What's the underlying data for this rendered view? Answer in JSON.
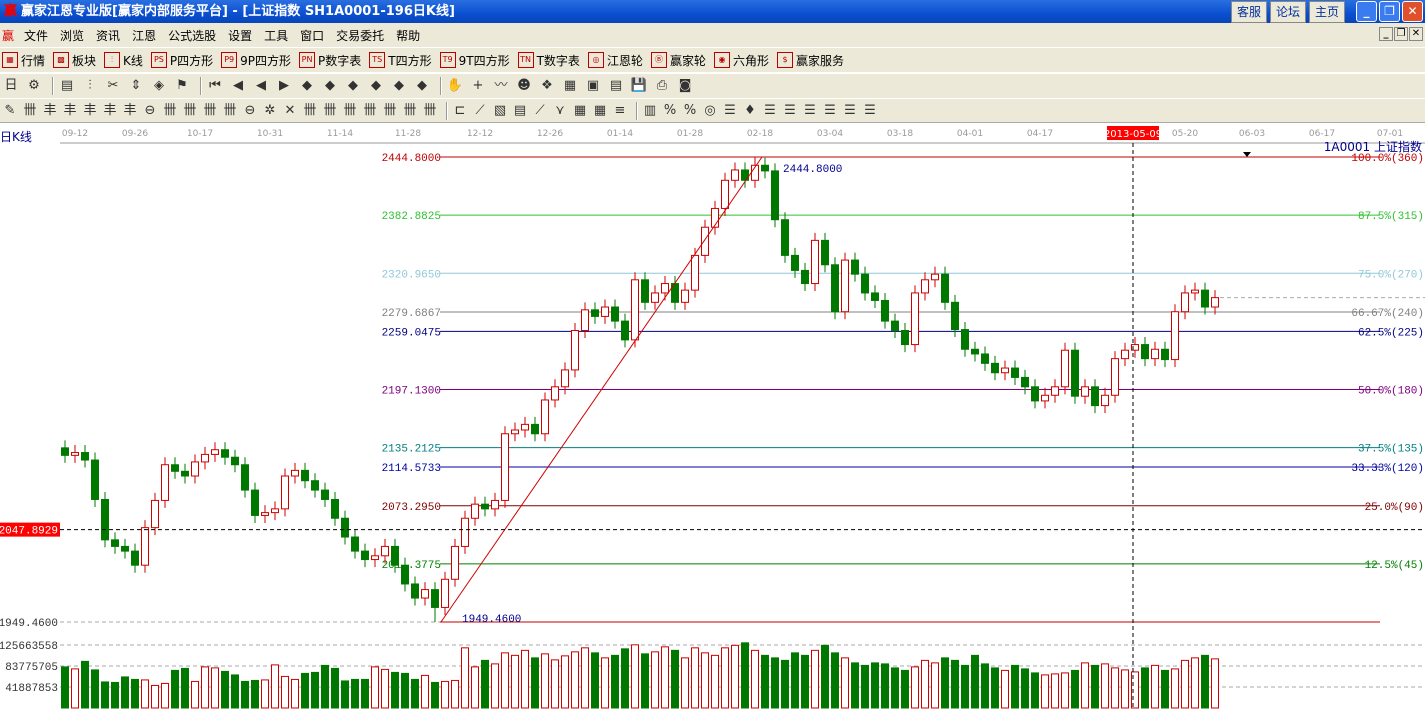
{
  "title": {
    "logo": "赢",
    "text": "赢家江恩专业版[赢家内部服务平台] - [上证指数   SH1A0001-196日K线]",
    "links": [
      "客服",
      "论坛",
      "主页"
    ]
  },
  "menu": {
    "logo": "赢",
    "items": [
      "文件",
      "浏览",
      "资讯",
      "江恩",
      "公式选股",
      "设置",
      "工具",
      "窗口",
      "交易委托",
      "帮助"
    ]
  },
  "toolbar1": [
    {
      "icon": "grid-icon",
      "glyph": "▦",
      "label": "行情"
    },
    {
      "icon": "blocks-icon",
      "glyph": "▩",
      "label": "板块"
    },
    {
      "icon": "candles-icon",
      "glyph": "⫶",
      "label": "K线"
    },
    {
      "icon": "ps-icon",
      "glyph": "PS",
      "label": "P四方形"
    },
    {
      "icon": "p9-icon",
      "glyph": "P9",
      "label": "9P四方形"
    },
    {
      "icon": "pn-icon",
      "glyph": "PN",
      "label": "P数字表"
    },
    {
      "icon": "ts-icon",
      "glyph": "TS",
      "label": "T四方形"
    },
    {
      "icon": "t9-icon",
      "glyph": "T9",
      "label": "9T四方形"
    },
    {
      "icon": "tn-icon",
      "glyph": "TN",
      "label": "T数字表"
    },
    {
      "icon": "gann-wheel-icon",
      "glyph": "◎",
      "label": "江恩轮"
    },
    {
      "icon": "big-wheel-icon",
      "glyph": "Ⓑ",
      "label": "赢家轮"
    },
    {
      "icon": "hexagon-icon",
      "glyph": "◉",
      "label": "六角形"
    },
    {
      "icon": "dollar-icon",
      "glyph": "$",
      "label": "赢家服务"
    }
  ],
  "toolbar2": [
    "day-period-icon",
    "cycle-icon",
    "doc-icon",
    "candles-icon",
    "scissors-icon",
    "updown-icon",
    "chart-color-icon",
    "flag-icon",
    "first-icon",
    "prev-page-icon",
    "prev-icon",
    "next-icon",
    "diamond1-icon",
    "diamond2-icon",
    "diamond3-icon",
    "diamond4-icon",
    "diamond5-icon",
    "diamond6-icon",
    "hand-icon",
    "crosshair-icon",
    "zigzag-icon",
    "mask-icon",
    "puzzle-icon",
    "calendar-icon",
    "calculator-icon",
    "list-icon",
    "save-icon",
    "print-icon",
    "camera-icon"
  ],
  "toolbar2_glyphs": [
    "日",
    "⚙",
    "▤",
    "⫶",
    "✂",
    "⇕",
    "◈",
    "⚑",
    "⏮",
    "◀",
    "◀",
    "▶",
    "◆",
    "◆",
    "◆",
    "◆",
    "◆",
    "◆",
    "✋",
    "+",
    "〰",
    "☻",
    "❖",
    "▦",
    "▣",
    "▤",
    "💾",
    "⎙",
    "◙"
  ],
  "toolbar3_glyphs": [
    "✎",
    "卌",
    "丰",
    "丰",
    "丰",
    "丰",
    "丰",
    "⊖",
    "卌",
    "卌",
    "卌",
    "卌",
    "⊖",
    "✲",
    "✕",
    "卌",
    "卌",
    "卌",
    "卌",
    "卌",
    "卌",
    "卌",
    "⊏",
    "⟋",
    "▧",
    "▤",
    "⟋",
    "⋎",
    "▦",
    "▦",
    "≡",
    "▥",
    "%",
    "%",
    "◎",
    "☰",
    "♦",
    "☰",
    "☰",
    "☰",
    "☰",
    "☰",
    "☰"
  ],
  "chart": {
    "period_label": "日K线",
    "symbol_label": "1A0001  上证指数",
    "crosshair": {
      "date": "2013-05-09",
      "price": "2047.8929",
      "index": 107,
      "price_value": 2047.8929
    },
    "high_label": "2444.8000",
    "low_label": "1949.4600",
    "volume_ticks": [
      "125663558",
      "83775705",
      "41887853"
    ],
    "volume_tick_values": [
      125663558,
      83775705,
      41887853
    ],
    "colors": {
      "up": "#d00000",
      "down": "#007800",
      "crosshair_box": "#ff0000",
      "axis_text": "#9a9a9a"
    }
  },
  "chart_data": {
    "type": "candlestick",
    "price_range": [
      1949.46,
      2444.8
    ],
    "date_ticks": [
      {
        "label": "09-12",
        "index": 1
      },
      {
        "label": "09-26",
        "index": 7
      },
      {
        "label": "10-17",
        "index": 13.5
      },
      {
        "label": "10-31",
        "index": 20.5
      },
      {
        "label": "11-14",
        "index": 27.5
      },
      {
        "label": "11-28",
        "index": 34.3
      },
      {
        "label": "12-12",
        "index": 41.5
      },
      {
        "label": "12-26",
        "index": 48.5
      },
      {
        "label": "01-14",
        "index": 55.5
      },
      {
        "label": "01-28",
        "index": 62.5
      },
      {
        "label": "02-18",
        "index": 69.5
      },
      {
        "label": "03-04",
        "index": 76.5
      },
      {
        "label": "03-18",
        "index": 83.5
      },
      {
        "label": "04-01",
        "index": 90.5
      },
      {
        "label": "04-17",
        "index": 97.5
      },
      {
        "label": "05-20",
        "index": 112
      },
      {
        "label": "06-03",
        "index": 118.7
      },
      {
        "label": "06-17",
        "index": 125.7
      },
      {
        "label": "07-01",
        "index": 132.5
      }
    ],
    "first_open": 2135,
    "close": [
      2127,
      2130,
      2122,
      2080,
      2037,
      2030,
      2025,
      2010,
      2050,
      2079,
      2117,
      2110,
      2105,
      2120,
      2128,
      2133,
      2125,
      2117,
      2090,
      2063,
      2066,
      2070,
      2105,
      2111,
      2100,
      2090,
      2080,
      2060,
      2040,
      2025,
      2016,
      2020,
      2030,
      2010,
      1990,
      1975,
      1984,
      1965,
      1995,
      2030,
      2060,
      2075,
      2070,
      2079,
      2150,
      2154,
      2160,
      2150,
      2186,
      2200,
      2218,
      2260,
      2282,
      2275,
      2285,
      2270,
      2250,
      2314,
      2290,
      2300,
      2310,
      2290,
      2303,
      2340,
      2370,
      2390,
      2420,
      2431,
      2420,
      2436,
      2430,
      2378,
      2340,
      2324,
      2310,
      2356,
      2330,
      2280,
      2335,
      2320,
      2300,
      2292,
      2270,
      2260,
      2245,
      2300,
      2314,
      2320,
      2290,
      2261,
      2240,
      2235,
      2225,
      2215,
      2220,
      2210,
      2200,
      2185,
      2191,
      2200,
      2239,
      2190,
      2200,
      2180,
      2191,
      2230,
      2239,
      2245,
      2230,
      2240,
      2229,
      2280,
      2300,
      2303,
      2285,
      2295
    ],
    "volume": [
      82000000.0,
      78000000.0,
      93000000.0,
      76000000.0,
      52000000.0,
      51000000.0,
      62000000.0,
      57000000.0,
      56000000.0,
      45000000.0,
      49000000.0,
      75000000.0,
      79000000.0,
      53000000.0,
      82000000.0,
      80000000.0,
      73000000.0,
      66000000.0,
      53000000.0,
      55000000.0,
      56000000.0,
      86000000.0,
      63000000.0,
      57000000.0,
      69000000.0,
      71000000.0,
      85000000.0,
      79000000.0,
      54000000.0,
      57000000.0,
      57000000.0,
      82000000.0,
      77000000.0,
      71000000.0,
      69000000.0,
      57000000.0,
      65000000.0,
      51000000.0,
      53000000.0,
      55000000.0,
      120000000.0,
      82000000.0,
      95000000.0,
      88000000.0,
      110000000.0,
      105000000.0,
      115000000.0,
      100000000.0,
      108000000.0,
      96000000.0,
      104000000.0,
      112000000.0,
      120000000.0,
      110000000.0,
      100000000.0,
      105000000.0,
      118000000.0,
      126000000.0,
      108000000.0,
      112000000.0,
      122000000.0,
      115000000.0,
      100000000.0,
      120000000.0,
      110000000.0,
      105000000.0,
      120000000.0,
      125000000.0,
      130000000.0,
      115000000.0,
      105000000.0,
      100000000.0,
      95000000.0,
      110000000.0,
      105000000.0,
      115000000.0,
      125000000.0,
      110000000.0,
      100000000.0,
      90000000.0,
      85000000.0,
      90000000.0,
      88000000.0,
      80000000.0,
      75000000.0,
      82000000.0,
      95000000.0,
      90000000.0,
      100000000.0,
      95000000.0,
      85000000.0,
      105000000.0,
      88000000.0,
      80000000.0,
      75000000.0,
      85000000.0,
      78000000.0,
      70000000.0,
      66000000.0,
      68000000.0,
      70000000.0,
      75000000.0,
      90000000.0,
      85000000.0,
      88000000.0,
      80000000.0,
      76000000.0,
      72000000.0,
      80000000.0,
      85000000.0,
      75000000.0,
      78000000.0,
      95000000.0,
      100000000.0,
      105000000.0,
      98000000.0
    ],
    "fib_levels": [
      {
        "value": 2444.8,
        "label": "2444.8000",
        "pct": "100.0%(360)",
        "color": "#c00000"
      },
      {
        "value": 2382.8825,
        "label": "2382.8825",
        "pct": "87.5%(315)",
        "color": "#30c030"
      },
      {
        "value": 2320.965,
        "label": "2320.9650",
        "pct": "75.0%(270)",
        "color": "#90c8d8"
      },
      {
        "value": 2279.6867,
        "label": "2279.6867",
        "pct": "66.67%(240)",
        "color": "#808080"
      },
      {
        "value": 2259.0475,
        "label": "2259.0475",
        "pct": "62.5%(225)",
        "color": "#000080"
      },
      {
        "value": 2197.13,
        "label": "2197.1300",
        "pct": "50.0%(180)",
        "color": "#800080"
      },
      {
        "value": 2135.2125,
        "label": "2135.2125",
        "pct": "37.5%(135)",
        "color": "#008080"
      },
      {
        "value": 2114.5733,
        "label": "2114.5733",
        "pct": "33.33%(120)",
        "color": "#0000a0"
      },
      {
        "value": 2073.295,
        "label": "2073.2950",
        "pct": "25.0%(90)",
        "color": "#800000"
      },
      {
        "value": 2011.3775,
        "label": "201 .3775",
        "pct": "12.5%(45)",
        "color": "#008000"
      },
      {
        "value": 1949.46,
        "label": "",
        "pct": "",
        "color": "#c00000"
      }
    ],
    "trendline": {
      "from": {
        "index": 37.6,
        "price": 1949.46
      },
      "to": {
        "index": 69.7,
        "price": 2444.8
      }
    },
    "last_price": 2295
  }
}
